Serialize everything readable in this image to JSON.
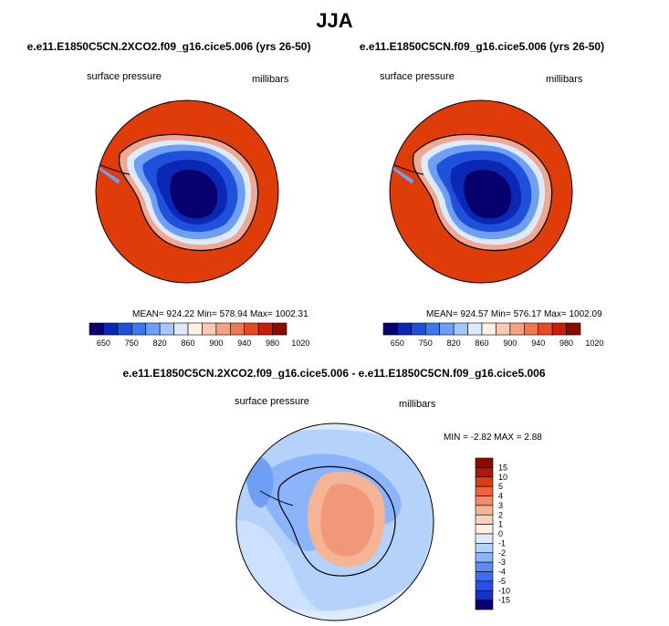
{
  "season": "JJA",
  "panels": [
    {
      "title": "e.e11.E1850C5CN.2XCO2.f09_g16.cice5.006 (yrs 26-50)",
      "variable": "surface pressure",
      "units": "millibars",
      "stats": "MEAN= 924.22  Min= 578.94  Max= 1002.31"
    },
    {
      "title": "e.e11.E1850C5CN.f09_g16.cice5.006 (yrs 26-50)",
      "variable": "surface pressure",
      "units": "millibars",
      "stats": "MEAN= 924.57  Min= 576.17  Max= 1002.09"
    },
    {
      "title": "e.e11.E1850C5CN.2XCO2.f09_g16.cice5.006 - e.e11.E1850C5CN.f09_g16.cice5.006",
      "variable": "surface pressure",
      "units": "millibars",
      "stats": "MIN =  -2.82 MAX =  2.88"
    }
  ],
  "abs_colorbar": {
    "colors": [
      "#08006e",
      "#0a28b4",
      "#1e50dc",
      "#3c78f0",
      "#6e9ff5",
      "#a5c8fa",
      "#dcebff",
      "#fff0e6",
      "#fac8b4",
      "#f5a082",
      "#f07850",
      "#e64b23",
      "#c81e0a",
      "#8c0a00"
    ],
    "labels": [
      "650",
      "750",
      "820",
      "860",
      "900",
      "940",
      "980",
      "1020"
    ]
  },
  "diff_colorbar": {
    "colors": [
      "#08006e",
      "#1432c8",
      "#2850e6",
      "#3c6ef5",
      "#5a8cf5",
      "#8cb4fa",
      "#b4d2fa",
      "#dcebff",
      "#fff0e6",
      "#fad2be",
      "#f5b496",
      "#f08c6e",
      "#eb643c",
      "#dc3c14",
      "#b41400",
      "#8c0a00"
    ],
    "labels": [
      "15",
      "10",
      "5",
      "4",
      "3",
      "2",
      "1",
      "0",
      "-1",
      "-2",
      "-3",
      "-4",
      "-5",
      "-10",
      "-15"
    ]
  }
}
